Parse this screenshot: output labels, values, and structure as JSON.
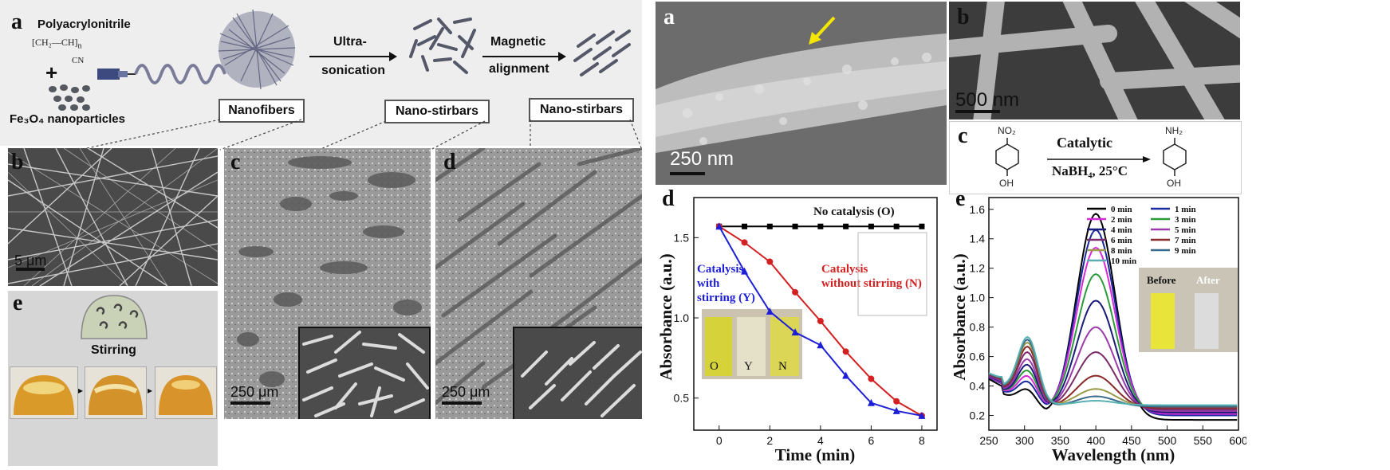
{
  "left_figure": {
    "panel_labels": {
      "a": "a",
      "b": "b",
      "c": "c",
      "d": "d",
      "e": "e"
    },
    "schematic": {
      "polymer_name": "Polyacrylonitrile",
      "formula_main": "[CH₂—CH]",
      "formula_sub": "n",
      "formula_group": "CN",
      "plus": "+",
      "nanoparticles": "Fe₃O₄ nanoparticles",
      "step1_line1": "Ultra-",
      "step1_line2": "sonication",
      "step2_line1": "Magnetic",
      "step2_line2": "alignment",
      "box_nanofibers": "Nanofibers",
      "box_stirbars_1": "Nano-stirbars",
      "box_stirbars_2": "Nano-stirbars"
    },
    "scalebars": {
      "b": "5 μm",
      "c": "250 μm",
      "d": "250 μm"
    },
    "stirring_label": "Stirring"
  },
  "right_figure": {
    "panel_labels": {
      "a": "a",
      "b": "b",
      "c": "c",
      "d": "d",
      "e": "e"
    },
    "scalebars": {
      "a": "250 nm",
      "b": "500 nm"
    },
    "reaction": {
      "reactant_group": "NO₂",
      "reactant_sub": "OH",
      "arrow_top": "Catalytic",
      "arrow_bottom": "NaBH₄, 25°C",
      "product_group": "NH₂",
      "product_sub": "OH"
    },
    "colors": {
      "no_catalysis": "#000000",
      "with_stirring": "#1d1fd6",
      "without_stirring": "#d42020"
    }
  },
  "chart_data": [
    {
      "type": "line",
      "panel": "d",
      "xlabel": "Time (min)",
      "ylabel": "Absorbance (a.u.)",
      "xlim": [
        -1,
        8.6
      ],
      "ylim": [
        0.3,
        1.75
      ],
      "xticks": [
        "0",
        "2",
        "4",
        "6",
        "8"
      ],
      "yticks": [
        "0.5",
        "1.0",
        "1.5"
      ],
      "series": [
        {
          "name": "No catalysis (O)",
          "color": "#000000",
          "marker": "square",
          "x": [
            0,
            1,
            2,
            3,
            4,
            5,
            6,
            7,
            8
          ],
          "y": [
            1.57,
            1.57,
            1.57,
            1.57,
            1.57,
            1.57,
            1.57,
            1.57,
            1.57
          ]
        },
        {
          "name": "Catalysis without stirring (N)",
          "color": "#d42020",
          "marker": "circle",
          "x": [
            0,
            1,
            2,
            3,
            4,
            5,
            6,
            7,
            8
          ],
          "y": [
            1.57,
            1.47,
            1.35,
            1.16,
            0.98,
            0.79,
            0.62,
            0.48,
            0.39
          ]
        },
        {
          "name": "Catalysis with stirring (Y)",
          "color": "#1d1fd6",
          "marker": "triangle",
          "x": [
            0,
            1,
            2,
            3,
            4,
            5,
            6,
            7,
            8
          ],
          "y": [
            1.57,
            1.29,
            1.04,
            0.91,
            0.83,
            0.64,
            0.47,
            0.42,
            0.39
          ]
        }
      ],
      "annotations": {
        "no_catalysis": "No catalysis (O)",
        "with_l1": "Catalysis",
        "with_l2": "with",
        "with_l3": "stirring (Y)",
        "without_l1": "Catalysis",
        "without_l2": "without stirring (N)"
      },
      "inset_labels": [
        "O",
        "Y",
        "N"
      ]
    },
    {
      "type": "line",
      "panel": "e",
      "xlabel": "Wavelength (nm)",
      "ylabel": "Absorbance (a.u.)",
      "xlim": [
        250,
        600
      ],
      "ylim": [
        0.1,
        1.68
      ],
      "xticks": [
        "250",
        "300",
        "350",
        "400",
        "450",
        "500",
        "550",
        "600"
      ],
      "yticks": [
        "0.2",
        "0.4",
        "0.6",
        "0.8",
        "1.0",
        "1.2",
        "1.4",
        "1.6"
      ],
      "legend_position": "top-right",
      "series": [
        {
          "name": "0 min",
          "color": "#000000",
          "peak": 1.57,
          "shoulder": 0.43,
          "tail": 0.17
        },
        {
          "name": "1 min",
          "color": "#1a2a9e",
          "peak": 1.46,
          "shoulder": 0.46,
          "tail": 0.2
        },
        {
          "name": "2 min",
          "color": "#d92ad9",
          "peak": 1.34,
          "shoulder": 0.49,
          "tail": 0.21
        },
        {
          "name": "3 min",
          "color": "#2a9a3a",
          "peak": 1.16,
          "shoulder": 0.52,
          "tail": 0.22
        },
        {
          "name": "4 min",
          "color": "#1a1a7a",
          "peak": 0.98,
          "shoulder": 0.56,
          "tail": 0.22
        },
        {
          "name": "5 min",
          "color": "#9a3aaa",
          "peak": 0.8,
          "shoulder": 0.59,
          "tail": 0.23
        },
        {
          "name": "6 min",
          "color": "#7a2a6a",
          "peak": 0.63,
          "shoulder": 0.63,
          "tail": 0.24
        },
        {
          "name": "7 min",
          "color": "#8a2a2a",
          "peak": 0.47,
          "shoulder": 0.66,
          "tail": 0.25
        },
        {
          "name": "8 min",
          "color": "#9a9a4a",
          "peak": 0.38,
          "shoulder": 0.68,
          "tail": 0.26
        },
        {
          "name": "9 min",
          "color": "#3a6a8a",
          "peak": 0.33,
          "shoulder": 0.7,
          "tail": 0.26
        },
        {
          "name": "10 min",
          "color": "#5ab0b0",
          "peak": 0.3,
          "shoulder": 0.71,
          "tail": 0.27
        }
      ],
      "inset_labels": [
        "Before",
        "After"
      ]
    }
  ]
}
